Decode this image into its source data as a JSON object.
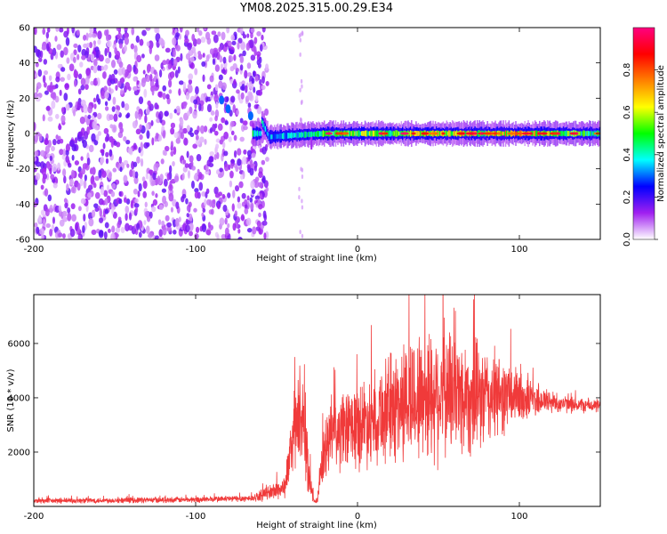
{
  "title": "YM08.2025.315.00.29.E34",
  "chart_data": [
    {
      "type": "heatmap",
      "title": "YM08.2025.315.00.29.E34",
      "xlabel": "Height of straight line (km)",
      "ylabel": "Frequency (Hz)",
      "xlim": [
        -200,
        150
      ],
      "ylim": [
        -60,
        60
      ],
      "xticks": [
        "-200",
        "-100",
        "0",
        "100"
      ],
      "yticks": [
        "60",
        "40",
        "20",
        "0",
        "-20",
        "-40",
        "-60"
      ],
      "colorbar": {
        "label": "Normalized spectral amplitude",
        "range": [
          0.0,
          1.0
        ],
        "ticks": [
          "0.0",
          "0.2",
          "0.4",
          "0.6",
          "0.8"
        ],
        "colors": [
          "#ffffff",
          "#a020f0",
          "#0000ff",
          "#00ffff",
          "#00ff00",
          "#ffff00",
          "#ff8000",
          "#ff0000",
          "#ff0080"
        ]
      },
      "features": {
        "noise_region_x": [
          -200,
          -60
        ],
        "noise_amplitude": 0.15,
        "signal_line": [
          {
            "x": -60,
            "y": 8,
            "amp": 0.45
          },
          {
            "x": -55,
            "y": -2,
            "amp": 0.4
          },
          {
            "x": -40,
            "y": -1,
            "amp": 0.45
          },
          {
            "x": -20,
            "y": 0,
            "amp": 0.6
          },
          {
            "x": 0,
            "y": 0,
            "amp": 0.65
          },
          {
            "x": 40,
            "y": 0,
            "amp": 0.7
          },
          {
            "x": 80,
            "y": 0,
            "amp": 0.75
          },
          {
            "x": 100,
            "y": 0,
            "amp": 0.85
          },
          {
            "x": 150,
            "y": 0,
            "amp": 0.5
          }
        ]
      }
    },
    {
      "type": "line",
      "xlabel": "Height of straight line (km)",
      "ylabel": "SNR (10 * v/v)",
      "xlim": [
        -200,
        150
      ],
      "ylim": [
        0,
        7800
      ],
      "xticks": [
        "-200",
        "-100",
        "0",
        "100"
      ],
      "yticks": [
        "2000",
        "4000",
        "6000"
      ],
      "color": "#f03a3a",
      "envelope": {
        "x": [
          -200,
          -100,
          -65,
          -45,
          -40,
          -35,
          -30,
          -27,
          -25,
          -22,
          -18,
          -10,
          0,
          10,
          20,
          30,
          40,
          50,
          60,
          70,
          80,
          90,
          100,
          110,
          120,
          130,
          150
        ],
        "center": [
          200,
          250,
          300,
          700,
          2500,
          3500,
          1200,
          200,
          150,
          1500,
          2500,
          2700,
          3000,
          3300,
          3600,
          3900,
          4100,
          4200,
          4200,
          4000,
          4000,
          4100,
          4000,
          3950,
          3850,
          3750,
          3700
        ],
        "spread": [
          120,
          130,
          150,
          500,
          1400,
          2200,
          900,
          100,
          100,
          1200,
          1500,
          1700,
          1900,
          2000,
          2400,
          2700,
          2900,
          3000,
          2700,
          2500,
          2200,
          1700,
          1200,
          800,
          500,
          350,
          300
        ]
      }
    }
  ]
}
